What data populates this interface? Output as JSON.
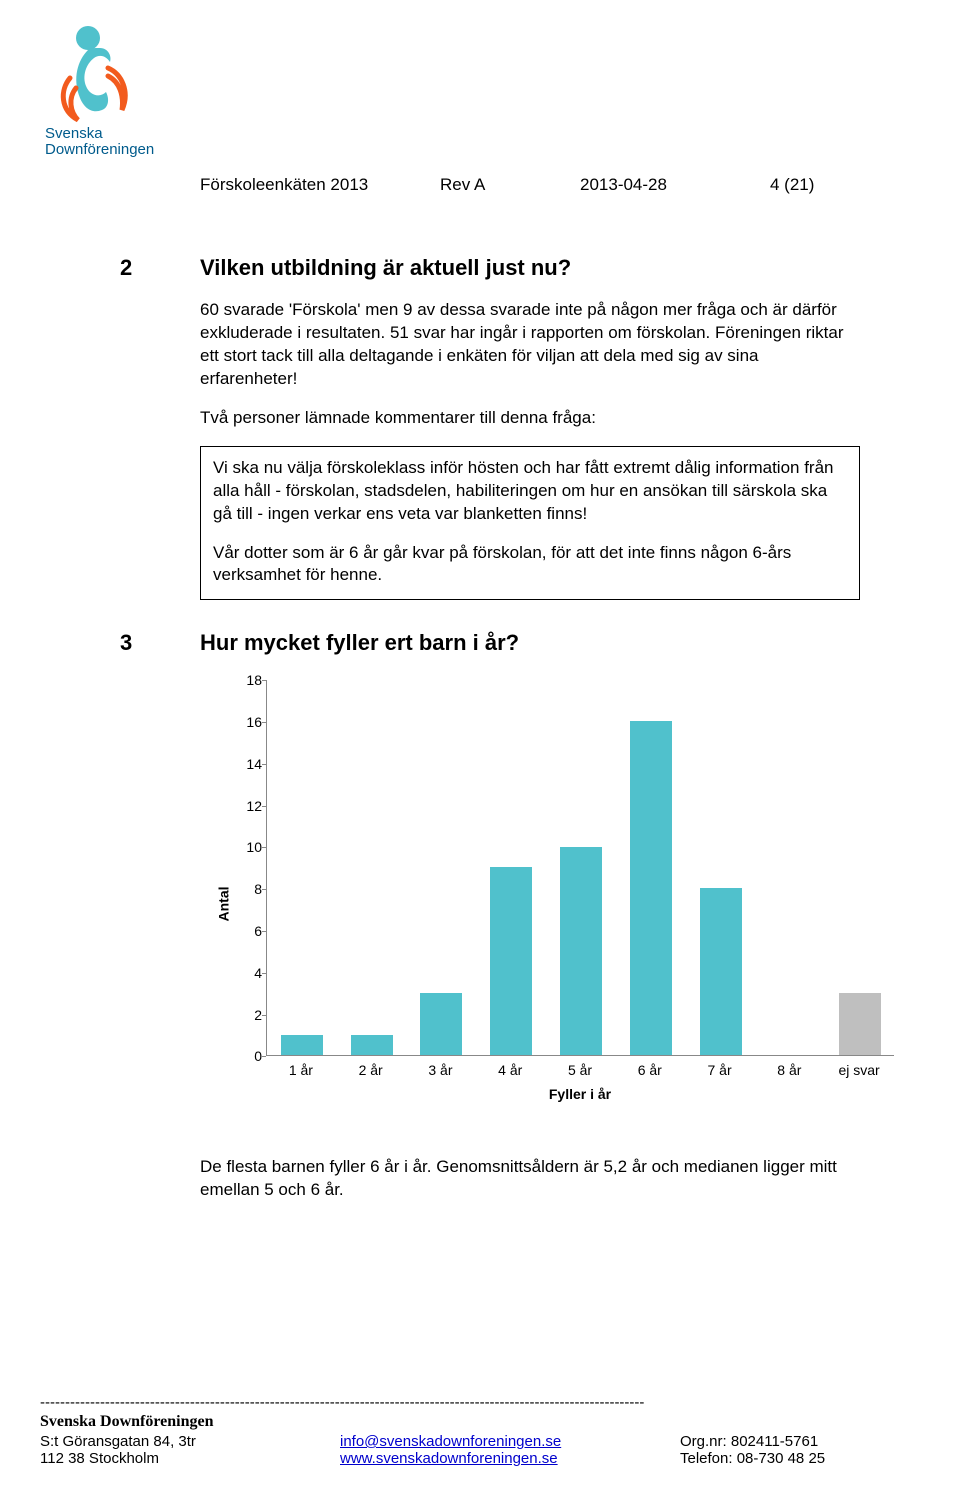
{
  "header": {
    "title": "Förskoleenkäten 2013",
    "rev": "Rev A",
    "date": "2013-04-28",
    "page": "4 (21)"
  },
  "logo": {
    "org_top": "Svenska",
    "org_bottom": "Downföreningen",
    "figure_color": "#50c1cc",
    "arc_color": "#f25b1e",
    "text_color": "#005b8c"
  },
  "q2": {
    "num": "2",
    "title": "Vilken utbildning är aktuell just nu?",
    "p1": "60 svarade 'Förskola' men 9 av dessa svarade inte på någon mer fråga och är därför exkluderade i resultaten. 51 svar har ingår i rapporten om förskolan. Föreningen riktar ett stort tack till alla deltagande i enkäten för viljan att dela med sig av sina erfarenheter!",
    "p2": "Två personer lämnade kommentarer till denna fråga:",
    "c1": "Vi ska nu välja förskoleklass inför hösten och har fått extremt dålig information från alla håll - förskolan, stadsdelen, habiliteringen om hur en ansökan till särskola ska gå till - ingen verkar ens veta var blanketten finns!",
    "c2": "Vår dotter som är 6 år går kvar på förskolan, för att det inte finns någon 6-års verksamhet för henne."
  },
  "q3": {
    "num": "3",
    "title": "Hur mycket fyller ert barn i år?",
    "caption": "De flesta barnen fyller 6 år i år. Genomsnittsåldern är 5,2 år och medianen ligger mitt emellan 5 och 6 år."
  },
  "chart": {
    "type": "bar",
    "ylabel": "Antal",
    "xlabel": "Fyller i år",
    "ymax": 18,
    "ytick_step": 2,
    "yticks": [
      0,
      2,
      4,
      6,
      8,
      10,
      12,
      14,
      16,
      18
    ],
    "categories": [
      "1 år",
      "2 år",
      "3 år",
      "4 år",
      "5 år",
      "6 år",
      "7 år",
      "8 år",
      "ej svar"
    ],
    "values": [
      1,
      1,
      3,
      9,
      10,
      16,
      8,
      0,
      3
    ],
    "bar_colors": [
      "#50c1cc",
      "#50c1cc",
      "#50c1cc",
      "#50c1cc",
      "#50c1cc",
      "#50c1cc",
      "#50c1cc",
      "#50c1cc",
      "#bfbfbf"
    ],
    "axis_color": "#888888",
    "background": "#ffffff",
    "font_size_ticks": 14,
    "font_size_labels": 14
  },
  "footer": {
    "org": "Svenska Downföreningen",
    "addr1": "S:t Göransgatan 84, 3tr",
    "addr2": "112 38 Stockholm",
    "email": "info@svenskadownforeningen.se",
    "web": "www.svenskadownforeningen.se",
    "orgnr_label": "Org.nr: ",
    "orgnr": "802411-5761",
    "tel_label": "Telefon: ",
    "tel": "08-730 48 25"
  }
}
